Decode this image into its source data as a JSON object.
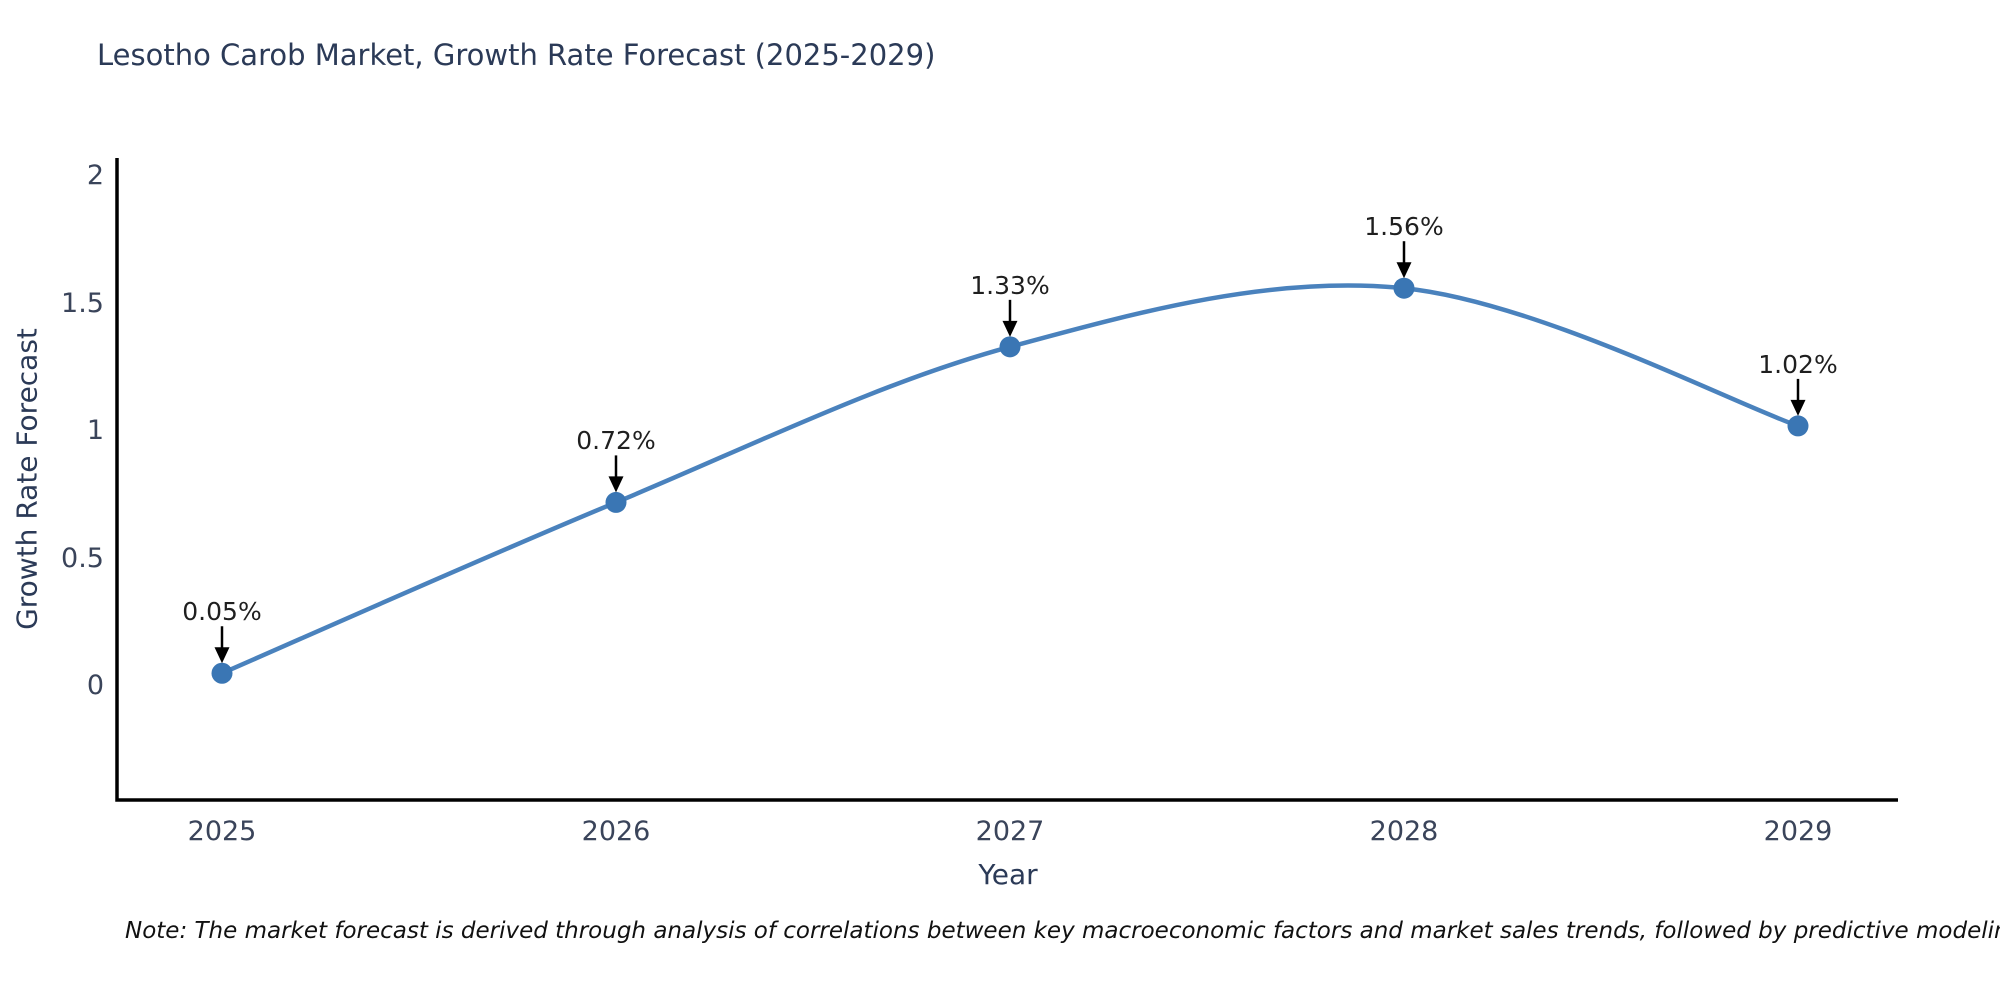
{
  "page": {
    "background": "#ffffff"
  },
  "note": "Note: The market forecast is derived through analysis of correlations between key macroeconomic factors and market sales trends, followed by predictive modeling to project future sales",
  "chart_data": {
    "type": "line",
    "title": "Lesotho Carob Market, Growth Rate Forecast (2025-2029)",
    "xlabel": "Year",
    "ylabel": "Growth Rate Forecast",
    "x": [
      "2025",
      "2026",
      "2027",
      "2028",
      "2029"
    ],
    "y": [
      0.05,
      0.72,
      1.33,
      1.56,
      1.02
    ],
    "point_labels": [
      "0.05%",
      "0.72%",
      "1.33%",
      "1.56%",
      "1.02%"
    ],
    "ytick_values": [
      0,
      0.5,
      1,
      1.5,
      2
    ],
    "ytick_labels": [
      "0",
      "0.5",
      "1",
      "1.5",
      "2"
    ],
    "xtick_labels": [
      "2025",
      "2026",
      "2027",
      "2028",
      "2029"
    ],
    "ylim": [
      -0.45,
      2.07
    ],
    "grid": false,
    "legend": false,
    "smooth_spline": true,
    "line_color": "#4a82bd",
    "marker_color": "#3a76b4",
    "axis_color": "#000000",
    "arrow_color": "#000000",
    "annotation_text_color": "#1f1f1f",
    "title_color": "#2b3a57",
    "tick_label_color": "#3a445a"
  }
}
